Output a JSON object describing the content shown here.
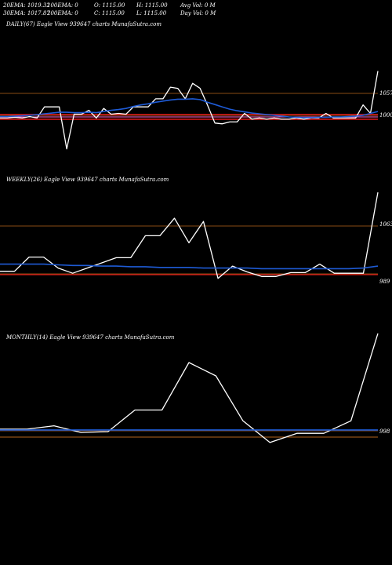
{
  "header": {
    "row1": [
      "20EMA: 1019.32",
      "100EMA: 0",
      "O: 1115.00",
      "H: 1115.00",
      "Avg Vol: 0  M"
    ],
    "row2": [
      "30EMA: 1017.87",
      "200EMA: 0",
      "C: 1115.00",
      "L: 1115.00",
      "Day Vol: 0  M"
    ]
  },
  "colors": {
    "background": "#000000",
    "price_line": "#ffffff",
    "ema_line": "#1e5bd6",
    "level_line": "#b5651d",
    "support_red": "#e01818",
    "support_pink": "#ff66cc"
  },
  "chart_data": [
    {
      "type": "line",
      "title": "DAILY(67) Eagle   View  939647 charts MunafaSutra.com",
      "y_labels": [
        "1057",
        "1000"
      ],
      "series": [
        {
          "values": [
            993,
            993,
            995,
            993,
            997,
            993,
            1022,
            1022,
            1022,
            913,
            1003,
            1003,
            1013,
            993,
            1018,
            1003,
            1005,
            1003,
            1022,
            1022,
            1022,
            1043,
            1043,
            1073,
            1070,
            1043,
            1083,
            1070,
            1027,
            980,
            978,
            983,
            983,
            1005,
            990,
            993,
            990,
            993,
            990,
            990,
            993,
            990,
            993,
            993,
            1005,
            993,
            993,
            993,
            993,
            1027,
            1005,
            1115
          ]
        },
        {
          "values": [
            997,
            997,
            998,
            999,
            1000,
            1002,
            1004,
            1006,
            1008,
            1008,
            1007,
            1007,
            1008,
            1007,
            1010,
            1013,
            1015,
            1018,
            1023,
            1027,
            1030,
            1034,
            1037,
            1040,
            1042,
            1042,
            1043,
            1041,
            1034,
            1028,
            1022,
            1016,
            1012,
            1009,
            1006,
            1004,
            1002,
            1000,
            998,
            996,
            995,
            994,
            994,
            995,
            995,
            996,
            996,
            997,
            998,
            1000,
            1005,
            1010
          ]
        }
      ],
      "levels": [
        1057,
        1000
      ]
    },
    {
      "type": "line",
      "title": "WEEKLY(26) Eagle   View  939647 charts MunafaSutra.com",
      "y_labels": [
        "1063",
        "989"
      ],
      "series": [
        {
          "values": [
            993,
            993,
            1015,
            1015,
            998,
            990,
            998,
            1006,
            1014,
            1014,
            1048,
            1048,
            1075,
            1037,
            1070,
            982,
            1001,
            992,
            985,
            985,
            991,
            991,
            1004,
            990,
            990,
            990,
            1115
          ]
        },
        {
          "values": [
            1004,
            1004,
            1004,
            1004,
            1003,
            1002,
            1002,
            1001,
            1001,
            1000,
            1000,
            999,
            999,
            999,
            998,
            998,
            998,
            998,
            997,
            997,
            997,
            997,
            997,
            997,
            997,
            998,
            1001
          ]
        }
      ],
      "levels": [
        1063,
        989
      ]
    },
    {
      "type": "line",
      "title": "MONTHLY(14) Eagle   View  939647 charts MunafaSutra.com",
      "y_labels": [
        "998"
      ],
      "series": [
        {
          "values": [
            1000,
            1000,
            1004,
            996,
            997,
            1023,
            1023,
            1080,
            1064,
            1010,
            984,
            995,
            995,
            1010,
            1115
          ]
        },
        {
          "values": [
            999,
            999,
            999,
            999,
            999,
            999,
            999,
            999,
            999,
            999,
            999,
            999,
            999,
            999,
            999
          ]
        }
      ],
      "levels": [
        998
      ]
    }
  ]
}
